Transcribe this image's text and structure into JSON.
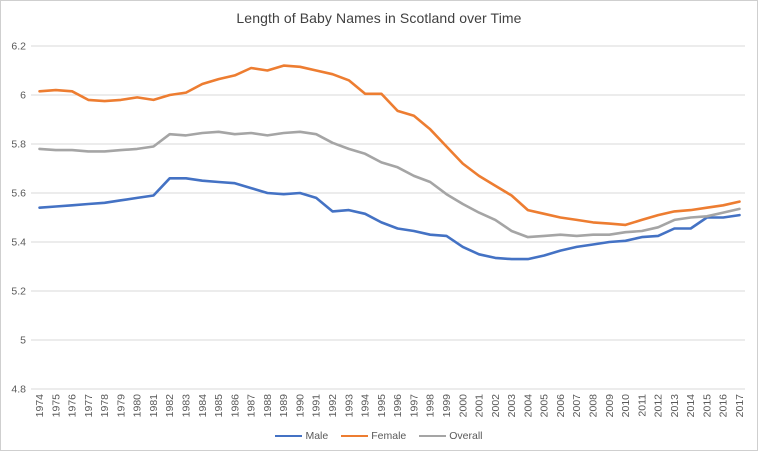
{
  "chart_data": {
    "type": "line",
    "title": "Length of Baby Names in Scotland over Time",
    "xlabel": "",
    "ylabel": "",
    "ylim": [
      4.8,
      6.2
    ],
    "y_ticks": [
      6.2,
      6.0,
      5.8,
      5.6,
      5.4,
      5.2,
      5.0,
      4.8
    ],
    "y_tick_labels": [
      "6.2",
      "6",
      "5.8",
      "5.6",
      "5.4",
      "5.2",
      "5",
      "4.8"
    ],
    "grid": true,
    "legend_position": "bottom",
    "categories": [
      "1974",
      "1975",
      "1976",
      "1977",
      "1978",
      "1979",
      "1980",
      "1981",
      "1982",
      "1983",
      "1984",
      "1985",
      "1986",
      "1987",
      "1988",
      "1989",
      "1990",
      "1991",
      "1992",
      "1993",
      "1994",
      "1995",
      "1996",
      "1997",
      "1998",
      "1999",
      "2000",
      "2001",
      "2002",
      "2003",
      "2004",
      "2005",
      "2006",
      "2007",
      "2008",
      "2009",
      "2010",
      "2011",
      "2012",
      "2013",
      "2014",
      "2015",
      "2016",
      "2017"
    ],
    "series": [
      {
        "name": "Male",
        "color": "#4472C4",
        "values": [
          5.54,
          5.545,
          5.55,
          5.555,
          5.56,
          5.57,
          5.58,
          5.59,
          5.66,
          5.66,
          5.65,
          5.645,
          5.64,
          5.62,
          5.6,
          5.595,
          5.6,
          5.58,
          5.525,
          5.53,
          5.515,
          5.48,
          5.455,
          5.445,
          5.43,
          5.425,
          5.38,
          5.35,
          5.335,
          5.33,
          5.33,
          5.345,
          5.365,
          5.38,
          5.39,
          5.4,
          5.405,
          5.42,
          5.425,
          5.455,
          5.455,
          5.5,
          5.5,
          5.51
        ]
      },
      {
        "name": "Female",
        "color": "#ED7D31",
        "values": [
          6.015,
          6.02,
          6.015,
          5.98,
          5.975,
          5.98,
          5.99,
          5.98,
          6.0,
          6.01,
          6.045,
          6.065,
          6.08,
          6.11,
          6.1,
          6.12,
          6.115,
          6.1,
          6.085,
          6.06,
          6.005,
          6.005,
          5.935,
          5.915,
          5.86,
          5.79,
          5.72,
          5.67,
          5.63,
          5.59,
          5.53,
          5.515,
          5.5,
          5.49,
          5.48,
          5.475,
          5.47,
          5.49,
          5.51,
          5.525,
          5.53,
          5.54,
          5.55,
          5.565
        ]
      },
      {
        "name": "Overall",
        "color": "#A5A5A5",
        "values": [
          5.78,
          5.775,
          5.775,
          5.77,
          5.77,
          5.775,
          5.78,
          5.79,
          5.84,
          5.835,
          5.845,
          5.85,
          5.84,
          5.845,
          5.835,
          5.845,
          5.85,
          5.84,
          5.805,
          5.78,
          5.76,
          5.725,
          5.705,
          5.67,
          5.645,
          5.595,
          5.555,
          5.52,
          5.49,
          5.445,
          5.42,
          5.425,
          5.43,
          5.425,
          5.43,
          5.43,
          5.44,
          5.445,
          5.46,
          5.49,
          5.5,
          5.505,
          5.52,
          5.535
        ]
      }
    ]
  },
  "colors": {
    "gridline": "#d9d9d9",
    "axis_text": "#595959",
    "title_text": "#404040",
    "frame_border": "#cfcfcf"
  }
}
